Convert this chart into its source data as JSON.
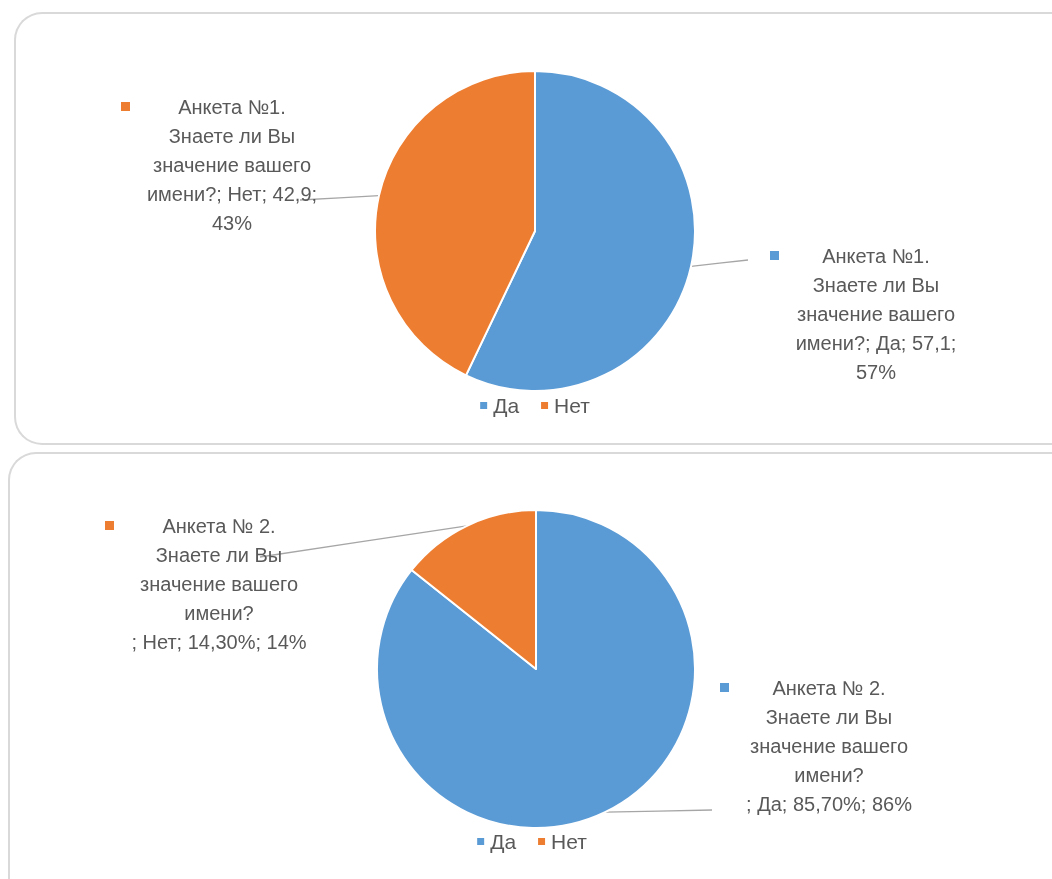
{
  "chart_data": [
    {
      "type": "pie",
      "categories": [
        "Да",
        "Нет"
      ],
      "values": [
        57.1,
        42.9
      ],
      "colors": [
        "#5b9bd5",
        "#ed7d31"
      ],
      "value_labels": [
        "Анкета №1. Знаете ли Вы значение вашего имени?; Да; 57,1; 57%",
        "Анкета №1. Знаете ли Вы значение вашего имени?; Нет; 42,9; 43%"
      ],
      "legend": "bottom"
    },
    {
      "type": "pie",
      "categories": [
        "Да",
        "Нет"
      ],
      "values": [
        85.7,
        14.3
      ],
      "colors": [
        "#5b9bd5",
        "#ed7d31"
      ],
      "value_labels": [
        "Анкета № 2. Знаете ли Вы значение вашего имени?\n; Да; 85,70%; 86%",
        "Анкета № 2. Знаете ли Вы значение вашего имени?\n; Нет; 14,30%; 14%"
      ],
      "legend": "bottom"
    }
  ]
}
